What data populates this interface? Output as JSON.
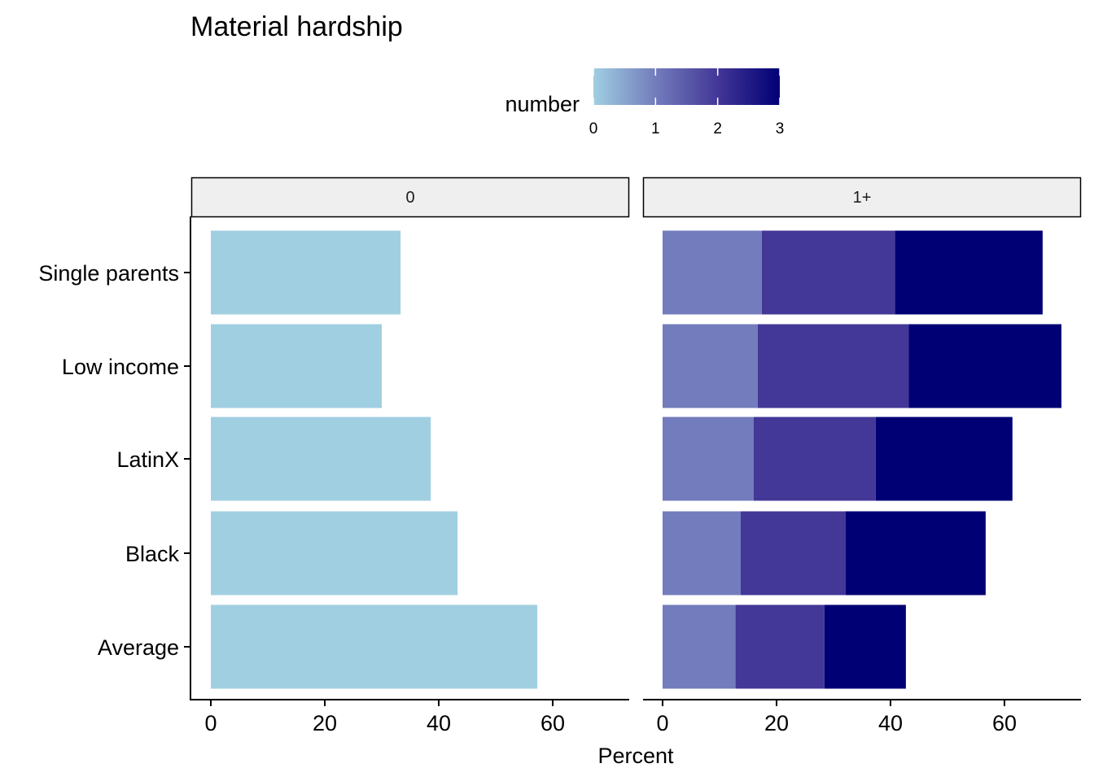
{
  "chart_data": {
    "type": "bar",
    "orientation": "horizontal",
    "stacked": true,
    "title": "Material hardship",
    "xlabel": "Percent",
    "ylabel": "",
    "xlim": [
      0,
      73
    ],
    "xticks": [
      0,
      20,
      40,
      60
    ],
    "categories": [
      "Single parents",
      "Low income",
      "LatinX",
      "Black",
      "Average"
    ],
    "legend": {
      "title": "number",
      "position": "top",
      "type": "colorbar",
      "range": [
        0,
        3
      ],
      "ticks": [
        0,
        1,
        2,
        3
      ],
      "colors": [
        "#a0cfe1",
        "#737cbc",
        "#433797",
        "#000075"
      ]
    },
    "facets": [
      {
        "label": "0",
        "series": [
          {
            "number": 0,
            "color": "#a0cfe1",
            "values": [
              33.3,
              30.0,
              38.6,
              43.3,
              57.3
            ]
          }
        ]
      },
      {
        "label": "1+",
        "series": [
          {
            "number": 1,
            "color": "#737cbc",
            "values": [
              17.4,
              16.7,
              16.0,
              13.7,
              12.8
            ]
          },
          {
            "number": 2,
            "color": "#433797",
            "values": [
              23.4,
              26.5,
              21.4,
              18.4,
              15.6
            ]
          },
          {
            "number": 3,
            "color": "#000075",
            "values": [
              25.9,
              26.8,
              24.0,
              24.6,
              14.3
            ]
          }
        ]
      }
    ]
  }
}
